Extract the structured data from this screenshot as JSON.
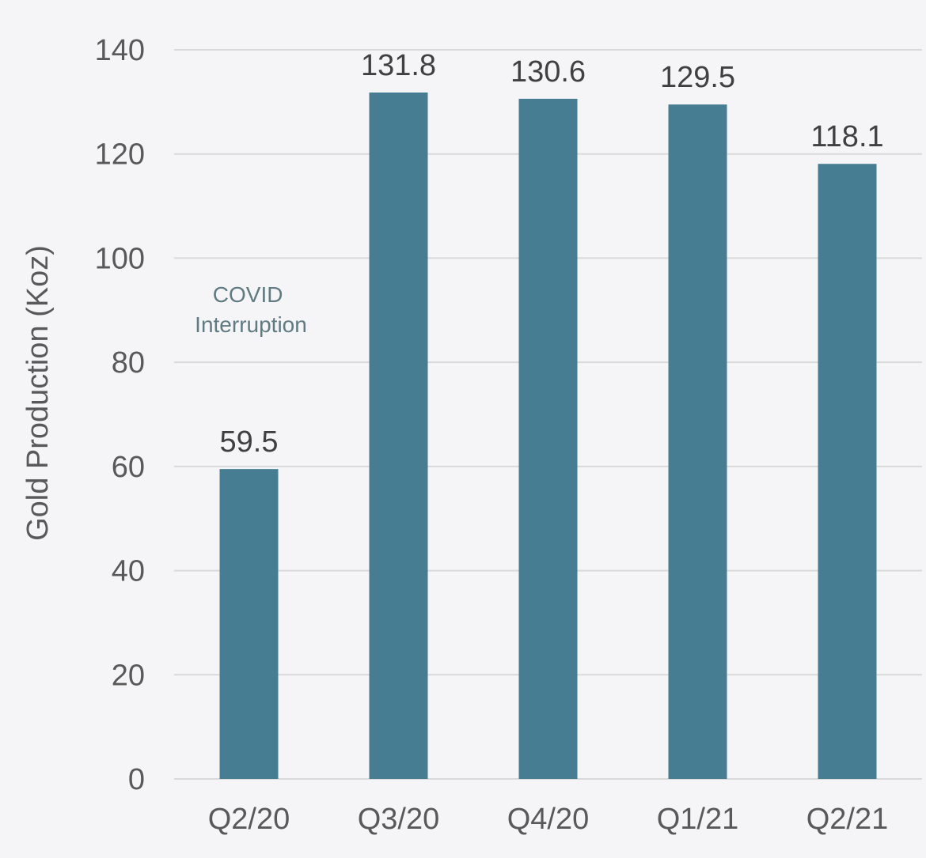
{
  "chart_data": {
    "type": "bar",
    "categories": [
      "Q2/20",
      "Q3/20",
      "Q4/20",
      "Q1/21",
      "Q2/21"
    ],
    "values": [
      59.5,
      131.8,
      130.6,
      129.5,
      118.1
    ],
    "data_labels": [
      "59.5",
      "131.8",
      "130.6",
      "129.5",
      "118.1"
    ],
    "title": "",
    "xlabel": "",
    "ylabel": "Gold Production (Koz)",
    "ylim": [
      0,
      140
    ],
    "yticks": [
      0,
      20,
      40,
      60,
      80,
      100,
      120,
      140
    ],
    "grid": true,
    "legend": "none",
    "annotations": [
      {
        "lines": [
          "COVID",
          "Interruption"
        ],
        "anchor_category": "Q2/20"
      }
    ],
    "colors": {
      "bar": "#467d93",
      "grid": "#d9d9d9",
      "background": "#f5f5f7"
    }
  }
}
